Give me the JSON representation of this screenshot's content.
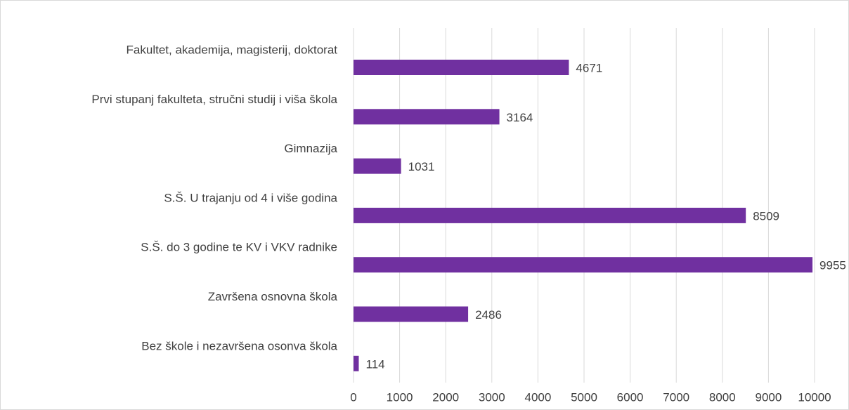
{
  "chart_data": {
    "type": "barh",
    "categories": [
      "Fakultet, akademija, magisterij, doktorat",
      "Prvi stupanj fakulteta, stručni studij i viša škola",
      "Gimnazija",
      "S.Š. U trajanju od 4 i više godina",
      "S.Š. do 3 godine te KV i VKV radnike",
      "Završena osnovna škola",
      "Bez škole i nezavršena osonva škola"
    ],
    "values": [
      4671,
      3164,
      1031,
      8509,
      9955,
      2486,
      114
    ],
    "color": "#7030a0",
    "xlim": [
      0,
      10000
    ],
    "xticks": [
      0,
      1000,
      2000,
      3000,
      4000,
      5000,
      6000,
      7000,
      8000,
      9000,
      10000
    ],
    "grid": true
  }
}
